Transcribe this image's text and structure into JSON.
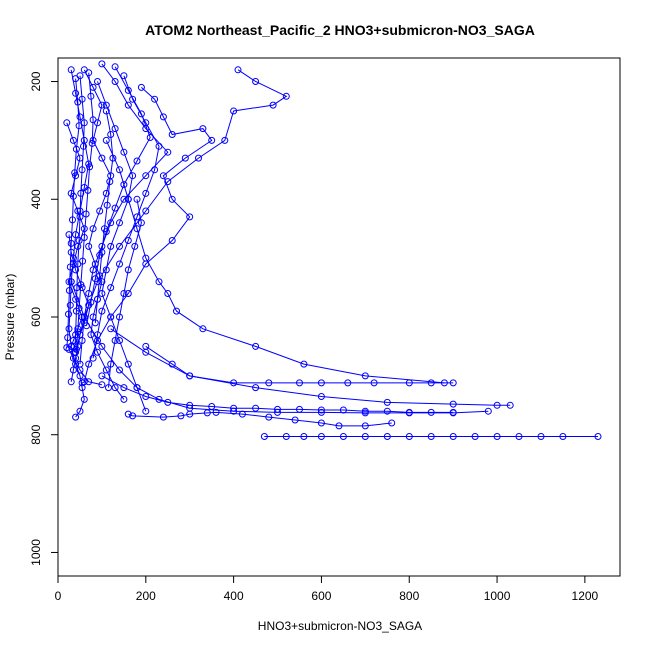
{
  "chart_data": {
    "type": "scatter",
    "title": "ATOM2 Northeast_Pacific_2 HNO3+submicron-NO3_SAGA",
    "xlabel": "HNO3+submicron-NO3_SAGA",
    "ylabel": "Pressure (mbar)",
    "xlim": [
      0,
      1280
    ],
    "ylim": [
      1040,
      160
    ],
    "y_reversed": true,
    "grid": false,
    "legend": "none",
    "x_ticks": [
      0,
      200,
      400,
      600,
      800,
      1000,
      1200
    ],
    "y_ticks": [
      200,
      400,
      600,
      800,
      1000
    ],
    "color": "#0000ff",
    "marker": "open-circle",
    "series": [
      {
        "x": [
          190,
          220,
          240,
          260,
          330,
          350,
          290,
          240,
          260,
          300,
          260,
          200,
          160,
          120,
          90,
          70,
          60,
          55
        ],
        "y": [
          210,
          230,
          260,
          290,
          280,
          300,
          330,
          360,
          400,
          430,
          470,
          510,
          560,
          600,
          640,
          680,
          710,
          712
        ]
      },
      {
        "x": [
          410,
          450,
          520,
          490,
          400,
          380,
          320,
          250,
          200,
          140,
          90,
          60,
          40
        ],
        "y": [
          180,
          200,
          225,
          240,
          250,
          300,
          330,
          370,
          420,
          480,
          540,
          600,
          660
        ]
      },
      {
        "x": [
          110,
          140,
          160,
          180,
          200,
          230,
          250,
          270,
          330,
          450,
          560,
          700,
          880
        ],
        "y": [
          300,
          350,
          400,
          450,
          500,
          540,
          560,
          590,
          620,
          650,
          680,
          700,
          712
        ]
      },
      {
        "x": [
          120,
          200,
          300,
          450,
          600,
          750,
          900,
          1000,
          1030
        ],
        "y": [
          620,
          660,
          700,
          720,
          735,
          745,
          748,
          750,
          750
        ]
      },
      {
        "x": [
          200,
          260,
          300,
          400,
          480,
          550,
          600,
          660,
          720,
          800,
          850,
          900
        ],
        "y": [
          650,
          680,
          700,
          712,
          712,
          712,
          712,
          712,
          712,
          712,
          712,
          712
        ]
      },
      {
        "x": [
          30,
          60,
          100,
          140,
          180,
          230,
          300,
          400,
          500,
          600,
          700,
          800,
          900,
          980
        ],
        "y": [
          540,
          600,
          650,
          690,
          720,
          740,
          755,
          760,
          762,
          762,
          763,
          763,
          763,
          760
        ]
      },
      {
        "x": [
          100,
          150,
          200,
          250,
          300,
          350,
          400,
          450,
          500,
          550,
          600,
          650,
          700,
          750,
          800,
          850,
          900
        ],
        "y": [
          700,
          720,
          735,
          745,
          750,
          752,
          755,
          755,
          757,
          757,
          758,
          758,
          760,
          760,
          762,
          762,
          762
        ]
      },
      {
        "x": [
          470,
          520,
          560,
          600,
          650,
          700,
          750,
          800,
          850,
          900,
          950,
          1000,
          1050,
          1100,
          1150,
          1230
        ],
        "y": [
          803,
          803,
          803,
          803,
          803,
          803,
          803,
          803,
          803,
          803,
          803,
          803,
          803,
          803,
          803,
          803
        ]
      },
      {
        "x": [
          160,
          170,
          240,
          280,
          300,
          340,
          360,
          420,
          480,
          540,
          600,
          640,
          700,
          760
        ],
        "y": [
          765,
          768,
          770,
          768,
          765,
          763,
          762,
          765,
          770,
          775,
          780,
          785,
          785,
          780
        ]
      },
      {
        "x": [
          30,
          40,
          50,
          60,
          70,
          60,
          50,
          40,
          35,
          30,
          28,
          25,
          30,
          40,
          50,
          55,
          60,
          50,
          40
        ],
        "y": [
          180,
          220,
          260,
          300,
          340,
          380,
          420,
          460,
          500,
          540,
          580,
          620,
          650,
          680,
          700,
          720,
          740,
          760,
          770
        ]
      },
      {
        "x": [
          20,
          35,
          50,
          40,
          30,
          45,
          60,
          45,
          35,
          25,
          40,
          55,
          45,
          35,
          30,
          25,
          35,
          50,
          70,
          100
        ],
        "y": [
          270,
          300,
          330,
          360,
          390,
          420,
          450,
          480,
          510,
          540,
          570,
          600,
          620,
          640,
          650,
          655,
          670,
          690,
          710,
          715
        ]
      },
      {
        "x": [
          60,
          80,
          100,
          90,
          80,
          100,
          120,
          110,
          95,
          80,
          70,
          85,
          100,
          90,
          80,
          75,
          90,
          110,
          130,
          150
        ],
        "y": [
          180,
          210,
          240,
          270,
          300,
          330,
          360,
          390,
          420,
          450,
          480,
          510,
          540,
          570,
          600,
          630,
          660,
          690,
          720,
          740
        ]
      },
      {
        "x": [
          90,
          110,
          130,
          150,
          170,
          160,
          140,
          120,
          110,
          100,
          120,
          140,
          160,
          180,
          200
        ],
        "y": [
          200,
          240,
          280,
          320,
          360,
          400,
          440,
          480,
          520,
          560,
          600,
          640,
          680,
          720,
          760
        ]
      },
      {
        "x": [
          100,
          130,
          160,
          200,
          250,
          200,
          150,
          120,
          100,
          80,
          70,
          60,
          55,
          50
        ],
        "y": [
          170,
          200,
          240,
          280,
          320,
          360,
          400,
          440,
          480,
          520,
          560,
          600,
          640,
          680
        ]
      },
      {
        "x": [
          50,
          55,
          60,
          58,
          55,
          52,
          50,
          48,
          45,
          43,
          42,
          40,
          38
        ],
        "y": [
          190,
          230,
          270,
          310,
          350,
          390,
          430,
          470,
          510,
          550,
          590,
          630,
          660
        ]
      },
      {
        "x": [
          70,
          75,
          80,
          78,
          72,
          68,
          64,
          60,
          56,
          52,
          48,
          45,
          42
        ],
        "y": [
          185,
          225,
          265,
          305,
          345,
          385,
          425,
          465,
          505,
          545,
          585,
          625,
          655
        ]
      },
      {
        "x": [
          40,
          45,
          48,
          42,
          38,
          35,
          33,
          30,
          28,
          26,
          24,
          22,
          20
        ],
        "y": [
          195,
          235,
          275,
          315,
          355,
          395,
          435,
          475,
          515,
          555,
          595,
          635,
          652
        ]
      },
      {
        "x": [
          130,
          160,
          190,
          210,
          180,
          150,
          130,
          110,
          95,
          85,
          75,
          65
        ],
        "y": [
          175,
          215,
          255,
          295,
          335,
          375,
          415,
          455,
          495,
          535,
          575,
          615
        ]
      },
      {
        "x": [
          150,
          170,
          200,
          230,
          220,
          200,
          180,
          160,
          140,
          120,
          100,
          90,
          80
        ],
        "y": [
          190,
          230,
          270,
          310,
          350,
          390,
          430,
          470,
          510,
          550,
          590,
          630,
          670
        ]
      },
      {
        "x": [
          25,
          30,
          40,
          55,
          70,
          60,
          50,
          45,
          40,
          35,
          30
        ],
        "y": [
          460,
          490,
          520,
          550,
          580,
          610,
          630,
          650,
          670,
          690,
          710
        ]
      },
      {
        "x": [
          110,
          120,
          125,
          118,
          112,
          106,
          100,
          95,
          90,
          85
        ],
        "y": [
          250,
          290,
          330,
          370,
          410,
          450,
          490,
          530,
          570,
          610
        ]
      },
      {
        "x": [
          180,
          190,
          175,
          160,
          150,
          140,
          130,
          120,
          115
        ],
        "y": [
          400,
          440,
          480,
          520,
          560,
          600,
          640,
          680,
          720
        ]
      }
    ]
  }
}
